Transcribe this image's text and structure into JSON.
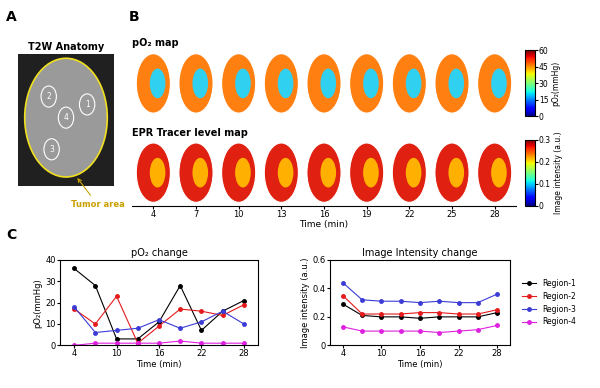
{
  "panel_labels": [
    "A",
    "B",
    "C"
  ],
  "panel_a": {
    "title": "T2W Anatomy",
    "annotation": "Tumor area",
    "regions": [
      "1",
      "2",
      "3",
      "4"
    ]
  },
  "panel_b": {
    "rows": [
      {
        "title": "pO₂ map",
        "colorbar": {
          "label": "pO₂(mmHg)",
          "range": [
            0,
            60
          ],
          "ticks": [
            0,
            15,
            30,
            45,
            60
          ]
        }
      },
      {
        "title": "EPR Tracer level map",
        "colorbar": {
          "label": "Image intensity (a.u.)",
          "range": [
            0,
            0.3
          ],
          "ticks": [
            0,
            0.1,
            0.2,
            0.3
          ]
        }
      }
    ],
    "time": [
      4,
      7,
      10,
      13,
      16,
      19,
      22,
      25,
      28
    ],
    "xlim": [
      2.5,
      29.5
    ],
    "xticks": [
      4,
      7,
      10,
      13,
      16,
      19,
      22,
      25,
      28
    ],
    "xlabel": "Time (min)"
  },
  "chart_data": [
    {
      "type": "line",
      "title": "pO₂ change",
      "xlabel": "Time (min)",
      "ylabel": "pO₂(mmHg)",
      "x": [
        4,
        7,
        10,
        13,
        16,
        19,
        22,
        25,
        28
      ],
      "xlim": [
        2,
        30
      ],
      "xticks": [
        4,
        10,
        16,
        22,
        28
      ],
      "ylim": [
        0,
        40
      ],
      "yticks": [
        0,
        10,
        20,
        30,
        40
      ],
      "marker": "circle",
      "series": [
        {
          "name": "Region-1",
          "color": "#000000",
          "values": [
            36,
            28,
            3,
            3,
            11,
            28,
            7,
            16,
            21
          ]
        },
        {
          "name": "Region-2",
          "color": "#e41a1c",
          "values": [
            17,
            10,
            23,
            1,
            9,
            17,
            16,
            14,
            19
          ]
        },
        {
          "name": "Region-3",
          "color": "#3b3bd6",
          "values": [
            18,
            6,
            7,
            8,
            12,
            8,
            11,
            16,
            10
          ]
        },
        {
          "name": "Region-4",
          "color": "#e020e0",
          "values": [
            0,
            1,
            1,
            1,
            1,
            2,
            1,
            1,
            1
          ]
        }
      ]
    },
    {
      "type": "line",
      "title": "Image Intensity change",
      "xlabel": "Time (min)",
      "ylabel": "Image intensity (a.u.)",
      "x": [
        4,
        7,
        10,
        13,
        16,
        19,
        22,
        25,
        28
      ],
      "xlim": [
        2,
        30
      ],
      "xticks": [
        4,
        10,
        16,
        22,
        28
      ],
      "ylim": [
        0,
        0.6
      ],
      "yticks": [
        0,
        0.2,
        0.4,
        0.6
      ],
      "marker": "circle",
      "legend": "center left",
      "series": [
        {
          "name": "Region-1",
          "color": "#000000",
          "values": [
            0.29,
            0.21,
            0.2,
            0.2,
            0.19,
            0.2,
            0.2,
            0.2,
            0.23
          ]
        },
        {
          "name": "Region-2",
          "color": "#e41a1c",
          "values": [
            0.35,
            0.22,
            0.22,
            0.22,
            0.23,
            0.23,
            0.22,
            0.22,
            0.25
          ]
        },
        {
          "name": "Region-3",
          "color": "#3b3bd6",
          "values": [
            0.44,
            0.32,
            0.31,
            0.31,
            0.3,
            0.31,
            0.3,
            0.3,
            0.36
          ]
        },
        {
          "name": "Region-4",
          "color": "#e020e0",
          "values": [
            0.13,
            0.1,
            0.1,
            0.1,
            0.1,
            0.09,
            0.1,
            0.11,
            0.14
          ]
        }
      ]
    }
  ]
}
